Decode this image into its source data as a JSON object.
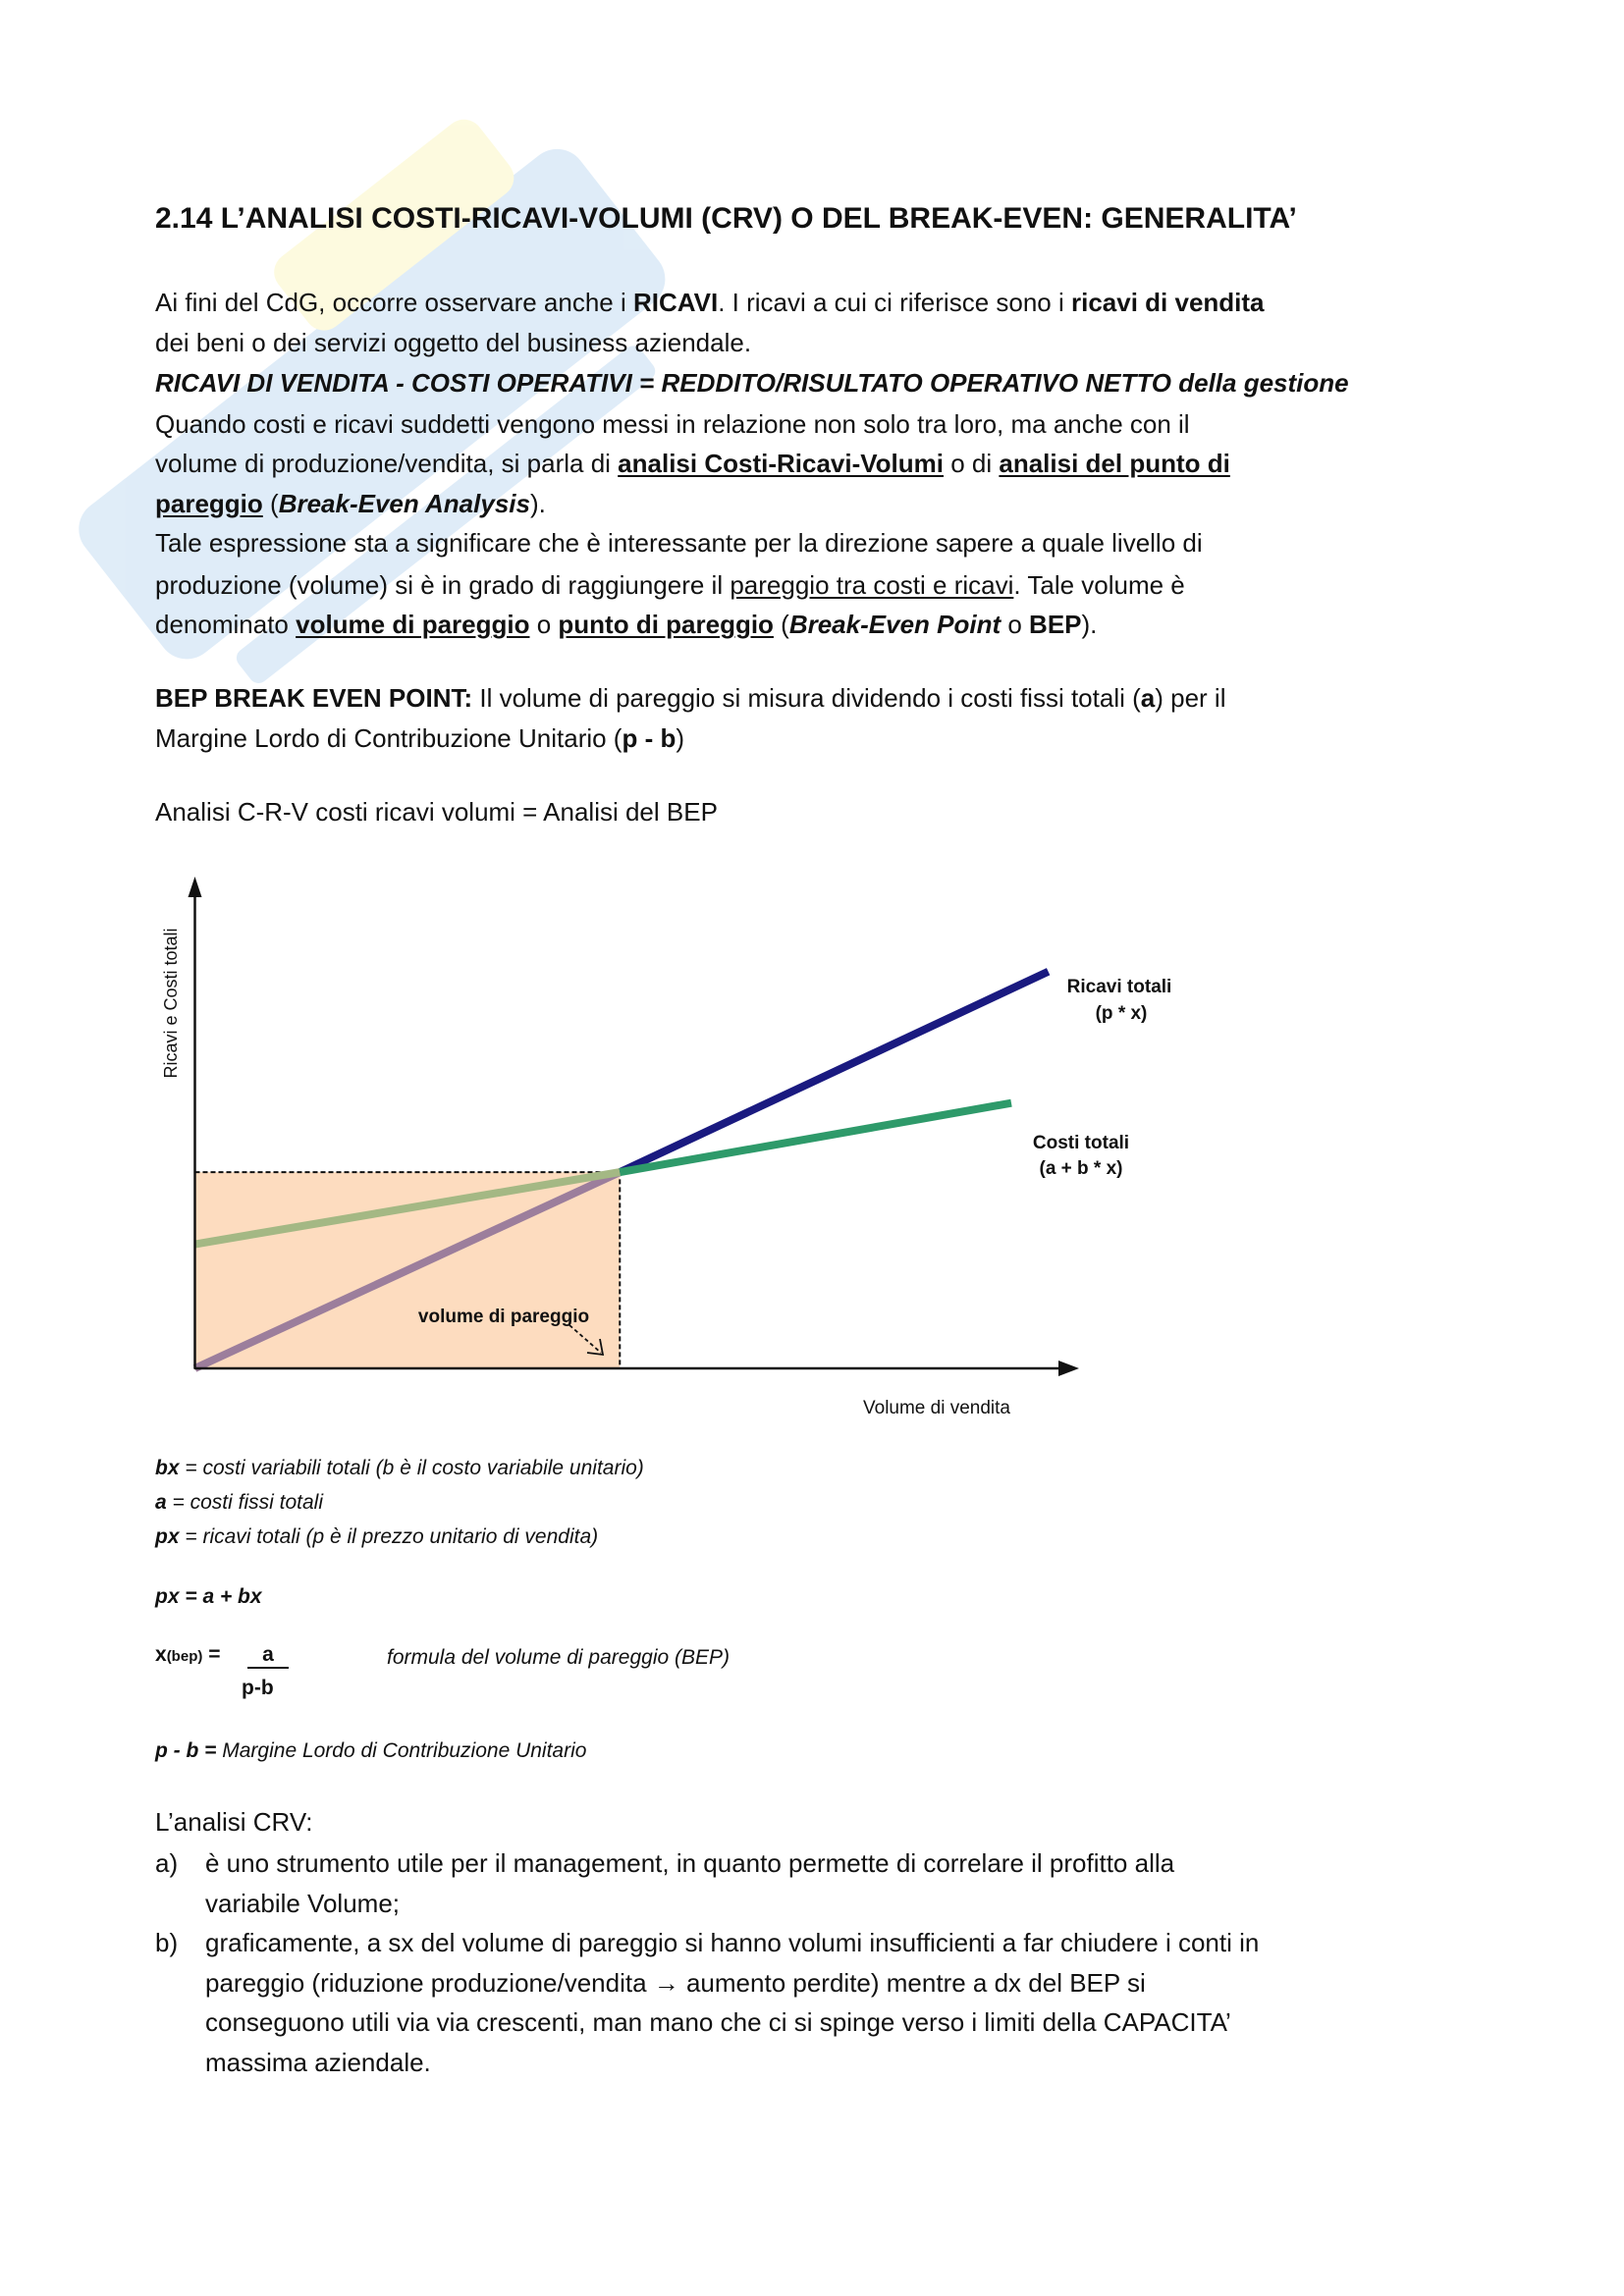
{
  "title": "2.14 L’ANALISI COSTI-RICAVI-VOLUMI (CRV) O DEL BREAK-EVEN: GENERALITA’",
  "paragraphs": [
    [
      [
        "Ai fini del CdG, occorre osservare anche i ",
        ""
      ],
      [
        "RICAVI",
        "b"
      ],
      [
        ". I ricavi a cui ci riferisce sono i ",
        ""
      ],
      [
        "ricavi di vendita",
        "b"
      ]
    ],
    [
      [
        "dei beni o dei servizi oggetto del business aziendale.",
        ""
      ]
    ],
    [
      [
        "RICAVI DI VENDITA - COSTI OPERATIVI = REDDITO/RISULTATO OPERATIVO NETTO della gestione",
        "b i"
      ]
    ],
    [
      [
        "Quando costi e ricavi suddetti vengono messi in relazione non solo tra loro, ma anche con il",
        ""
      ]
    ],
    [
      [
        "volume di produzione/vendita, si parla di ",
        ""
      ],
      [
        "analisi Costi-Ricavi-Volumi",
        "b u"
      ],
      [
        " o di ",
        ""
      ],
      [
        "analisi del punto di",
        "b u"
      ]
    ],
    [
      [
        "pareggio",
        "b u"
      ],
      [
        " (",
        ""
      ],
      [
        "Break-Even Analysis",
        "b i"
      ],
      [
        ").",
        ""
      ]
    ],
    [
      [
        "Tale espressione sta a significare che è interessante per la direzione sapere a quale livello di",
        ""
      ]
    ],
    [
      [
        "produzione (volume) si è in grado di raggiungere il ",
        ""
      ],
      [
        "pareggio tra costi e ricavi",
        "u"
      ],
      [
        ". Tale volume è",
        ""
      ]
    ],
    [
      [
        "denominato ",
        ""
      ],
      [
        "volume di pareggio",
        "b u"
      ],
      [
        " o ",
        ""
      ],
      [
        "punto di pareggio",
        "b u"
      ],
      [
        " (",
        ""
      ],
      [
        "Break-Even Point",
        "b i"
      ],
      [
        " o ",
        ""
      ],
      [
        "BEP",
        "b"
      ],
      [
        ").",
        ""
      ]
    ],
    [
      [
        "BEP BREAK EVEN POINT:",
        "b"
      ],
      [
        " Il volume di pareggio si misura dividendo i costi fissi totali (",
        ""
      ],
      [
        "a",
        "b"
      ],
      [
        ") per il",
        ""
      ]
    ],
    [
      [
        "Margine Lordo di Contribuzione Unitario (",
        ""
      ],
      [
        "p - b",
        "b"
      ],
      [
        ")",
        ""
      ]
    ],
    [
      [
        "Analisi C-R-V costi ricavi volumi = Analisi del BEP",
        ""
      ]
    ]
  ],
  "notes": [
    [
      [
        "bx",
        "b"
      ],
      [
        " = costi variabili totali (b è il costo variabile unitario)",
        ""
      ]
    ],
    [
      [
        "a",
        "b"
      ],
      [
        " = costi fissi totali",
        ""
      ]
    ],
    [
      [
        "px",
        "b"
      ],
      [
        " = ricavi totali (p è il prezzo unitario di vendita)",
        ""
      ]
    ],
    [
      [
        "px = a + bx",
        "b"
      ]
    ],
    [
      [
        "p - b = ",
        "b"
      ],
      [
        "Margine Lordo di Contribuzione Unitario",
        ""
      ]
    ]
  ],
  "formula": {
    "lhs": "x",
    "lhs_sub": "(bep)",
    "equals": "=",
    "numerator": "a",
    "denominator": "p-b",
    "description": "formula del volume di pareggio (BEP)"
  },
  "conclusion": {
    "intro": "L’analisi CRV:",
    "items": [
      {
        "marker": "a)",
        "lines": [
          "è uno strumento utile per il management, in quanto permette di correlare il profitto alla",
          "variabile Volume;"
        ]
      },
      {
        "marker": "b)",
        "lines": [
          "graficamente, a sx del volume di pareggio si hanno volumi insufficienti a far chiudere i conti in",
          "pareggio (riduzione produzione/vendita → aumento perdite) mentre a dx del BEP si",
          "conseguono utili via via crescenti, man mano che ci si spinge verso i limiti della CAPACITA’",
          "massima aziendale."
        ]
      }
    ]
  },
  "chart_data": {
    "type": "line",
    "title": "",
    "xlabel": "Volume di vendita",
    "ylabel": "Ricavi  e  Costi  totali",
    "xlim": [
      0,
      10
    ],
    "ylim": [
      0,
      10
    ],
    "grid": false,
    "series": [
      {
        "name": "Ricavi totali",
        "formula": "(p * x)",
        "x": [
          0,
          4.83,
          9.7
        ],
        "y": [
          0,
          4.03,
          8.15
        ],
        "color": "#1a1a80",
        "color_loss_zone": "#9c7e9c"
      },
      {
        "name": "Costi totali",
        "formula": "(a + b * x)",
        "x": [
          0,
          4.83,
          9.28
        ],
        "y": [
          2.55,
          4.03,
          5.45
        ],
        "color": "#2e9a6a",
        "color_loss_zone": "#a4b884"
      }
    ],
    "break_even": {
      "x": 4.83,
      "y": 4.03,
      "label": "volume di pareggio"
    },
    "loss_zone_color": "#fddcbf"
  }
}
